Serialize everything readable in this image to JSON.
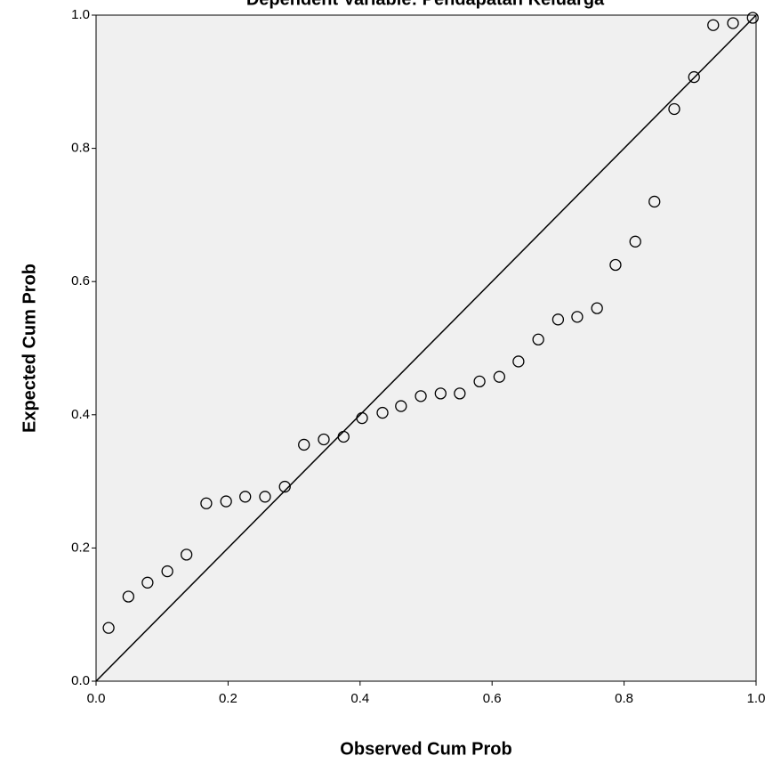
{
  "chart_data": {
    "type": "scatter",
    "title": "Dependent Variable: Pendapatan Keluarga",
    "x_label": "Observed Cum Prob",
    "y_label": "Expected Cum Prob",
    "x": [
      0.019,
      0.049,
      0.078,
      0.108,
      0.137,
      0.167,
      0.197,
      0.226,
      0.256,
      0.286,
      0.315,
      0.345,
      0.375,
      0.403,
      0.434,
      0.462,
      0.492,
      0.522,
      0.551,
      0.581,
      0.611,
      0.64,
      0.67,
      0.7,
      0.729,
      0.759,
      0.787,
      0.817,
      0.846,
      0.876,
      0.906,
      0.935,
      0.965,
      0.995
    ],
    "values": [
      0.08,
      0.127,
      0.148,
      0.165,
      0.19,
      0.267,
      0.27,
      0.277,
      0.277,
      0.292,
      0.355,
      0.363,
      0.367,
      0.395,
      0.403,
      0.413,
      0.428,
      0.432,
      0.432,
      0.45,
      0.457,
      0.48,
      0.513,
      0.543,
      0.547,
      0.56,
      0.625,
      0.66,
      0.72,
      0.859,
      0.907,
      0.985,
      0.988,
      0.996
    ],
    "color": "#000000",
    "xlim": [
      0,
      1
    ],
    "ylim": [
      0,
      1
    ],
    "xticks": [
      {
        "value": 0,
        "label": "0.0"
      },
      0.2,
      0.4,
      0.6,
      0.8,
      {
        "value": 1,
        "label": "1.0"
      }
    ],
    "yticks": [
      {
        "value": 0,
        "label": "0.0"
      },
      0.2,
      0.4,
      0.6,
      0.8,
      {
        "value": 1,
        "label": "1.0"
      }
    ],
    "reference_line": true
  }
}
